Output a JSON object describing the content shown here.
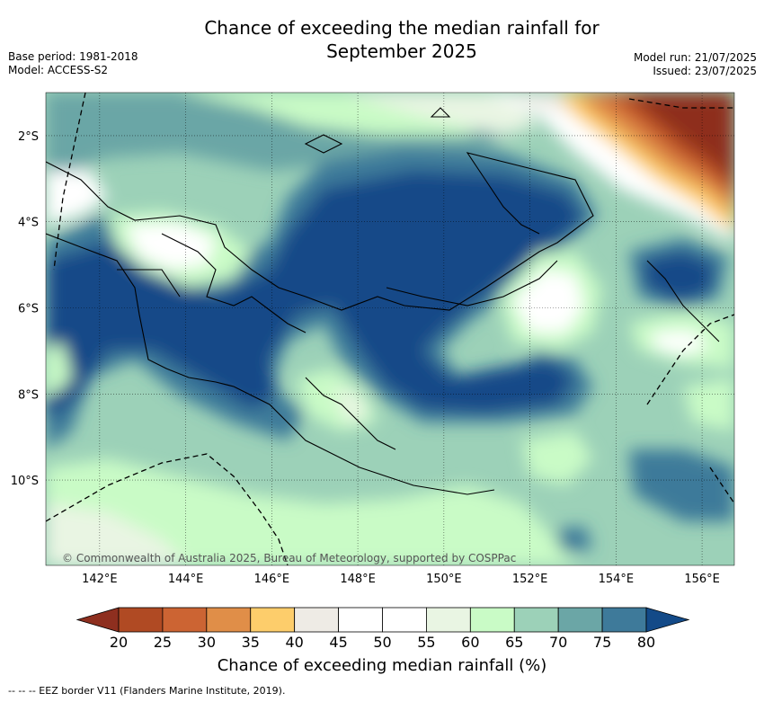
{
  "title_line1": "Chance of exceeding the median rainfall for",
  "title_line2": "September 2025",
  "meta_left": {
    "base_period": "Base period: 1981-2018",
    "model": "Model: ACCESS-S2"
  },
  "meta_right": {
    "model_run": "Model run: 21/07/2025",
    "issued": "Issued: 23/07/2025"
  },
  "x_ticks": [
    "142°E",
    "144°E",
    "146°E",
    "148°E",
    "150°E",
    "152°E",
    "154°E",
    "156°E"
  ],
  "y_ticks": [
    "2°S",
    "4°S",
    "6°S",
    "8°S",
    "10°S"
  ],
  "copyright": "© Commonwealth of Australia 2025, Bureau of Meteorology, supported by COSPPac",
  "colorbar": {
    "ticks": [
      "20",
      "25",
      "30",
      "35",
      "40",
      "45",
      "50",
      "55",
      "60",
      "65",
      "70",
      "75",
      "80"
    ],
    "colors": [
      "#8e2f1f",
      "#b04a23",
      "#cc6433",
      "#e08e48",
      "#fdcd6b",
      "#eeebe5",
      "#ffffff",
      "#ffffff",
      "#e9f5e3",
      "#c9fbc6",
      "#9cd1b8",
      "#6ba6a6",
      "#3e7a9a",
      "#134a88"
    ],
    "label": "Chance of exceeding median rainfall (%)"
  },
  "footer": "--  --  -- EEZ border V11 (Flanders Marine Institute, 2019)."
}
